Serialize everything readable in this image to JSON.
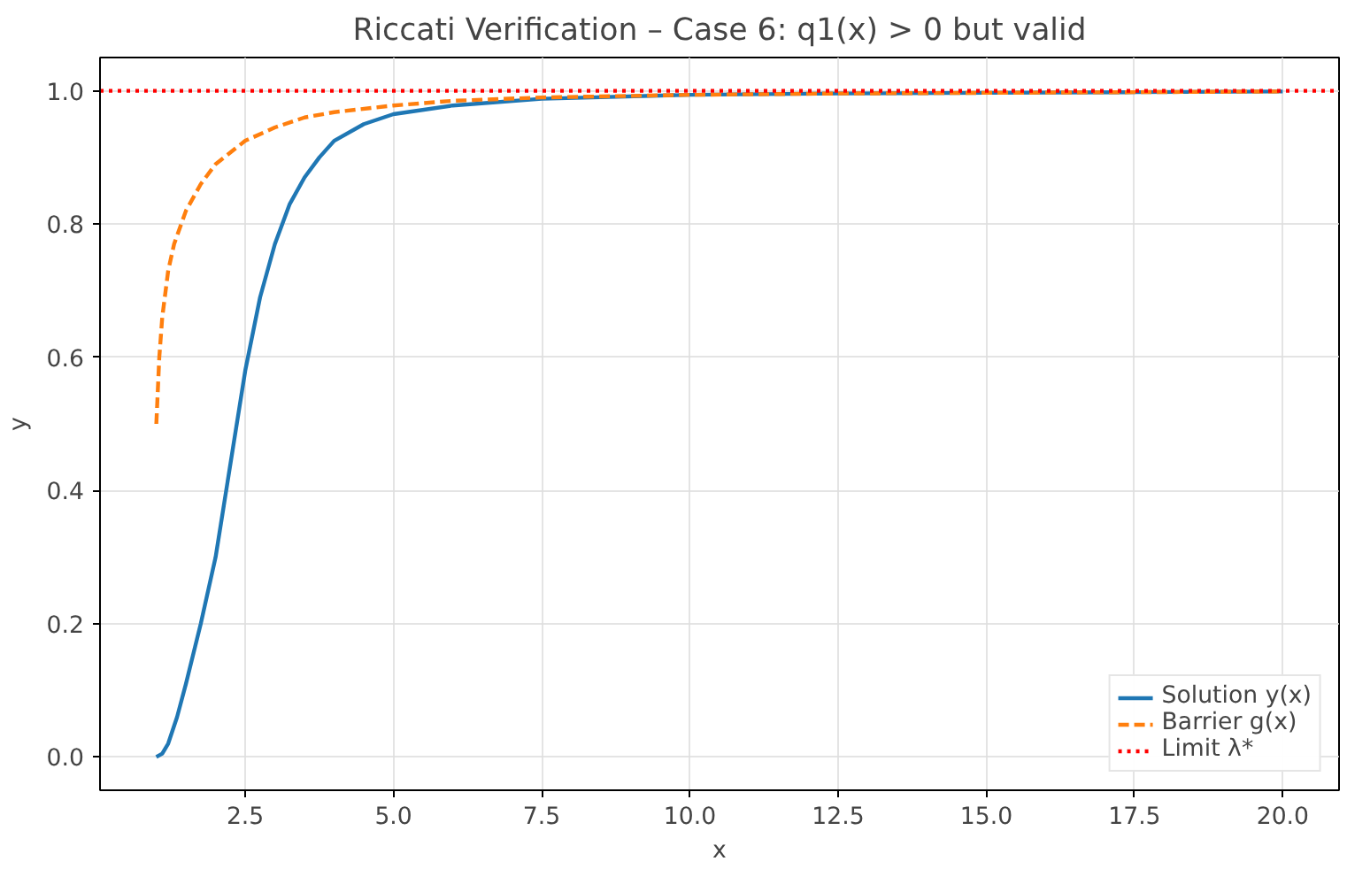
{
  "chart_data": {
    "type": "line",
    "title": "Riccati Verification – Case 6: q1(x) > 0 but valid",
    "xlabel": "x",
    "ylabel": "y",
    "series": [
      {
        "name": "Solution y(x)",
        "color": "#1f77b4",
        "line_style": "solid",
        "x": [
          1.0,
          1.1,
          1.2,
          1.35,
          1.5,
          1.75,
          2.0,
          2.25,
          2.5,
          2.75,
          3.0,
          3.25,
          3.5,
          3.75,
          4.0,
          4.5,
          5.0,
          6.0,
          7.5,
          10.0,
          12.5,
          15.0,
          17.5,
          20.0
        ],
        "values": [
          0.0,
          0.005,
          0.02,
          0.06,
          0.11,
          0.2,
          0.3,
          0.44,
          0.58,
          0.69,
          0.77,
          0.83,
          0.87,
          0.9,
          0.925,
          0.95,
          0.965,
          0.978,
          0.988,
          0.994,
          0.996,
          0.997,
          0.998,
          0.999
        ]
      },
      {
        "name": "Barrier g(x)",
        "color": "#ff7f0e",
        "line_style": "dashed",
        "x": [
          1.0,
          1.05,
          1.1,
          1.2,
          1.3,
          1.5,
          1.75,
          2.0,
          2.5,
          3.0,
          3.5,
          4.0,
          5.0,
          6.0,
          7.5,
          10.0,
          12.5,
          15.0,
          17.5,
          20.0
        ],
        "values": [
          0.5,
          0.6,
          0.66,
          0.73,
          0.77,
          0.82,
          0.86,
          0.89,
          0.925,
          0.945,
          0.96,
          0.968,
          0.978,
          0.985,
          0.99,
          0.994,
          0.996,
          0.997,
          0.998,
          0.999
        ]
      }
    ],
    "ref_lines": [
      {
        "axis": "y",
        "value": 1.0,
        "label": "Limit λ*",
        "color": "#ff0000",
        "line_style": "dotted"
      }
    ],
    "xlim": [
      0.05,
      20.95
    ],
    "ylim": [
      -0.05,
      1.05
    ],
    "xticks": [
      {
        "value": 2.5,
        "label": "2.5"
      },
      {
        "value": 5.0,
        "label": "5.0"
      },
      {
        "value": 7.5,
        "label": "7.5"
      },
      {
        "value": 10.0,
        "label": "10.0"
      },
      {
        "value": 12.5,
        "label": "12.5"
      },
      {
        "value": 15.0,
        "label": "15.0"
      },
      {
        "value": 17.5,
        "label": "17.5"
      },
      {
        "value": 20.0,
        "label": "20.0"
      }
    ],
    "yticks": [
      {
        "value": 0.0,
        "label": "0.0"
      },
      {
        "value": 0.2,
        "label": "0.2"
      },
      {
        "value": 0.4,
        "label": "0.4"
      },
      {
        "value": 0.6,
        "label": "0.6"
      },
      {
        "value": 0.8,
        "label": "0.8"
      },
      {
        "value": 1.0,
        "label": "1.0"
      }
    ],
    "grid": true,
    "legend": "bottom right"
  }
}
